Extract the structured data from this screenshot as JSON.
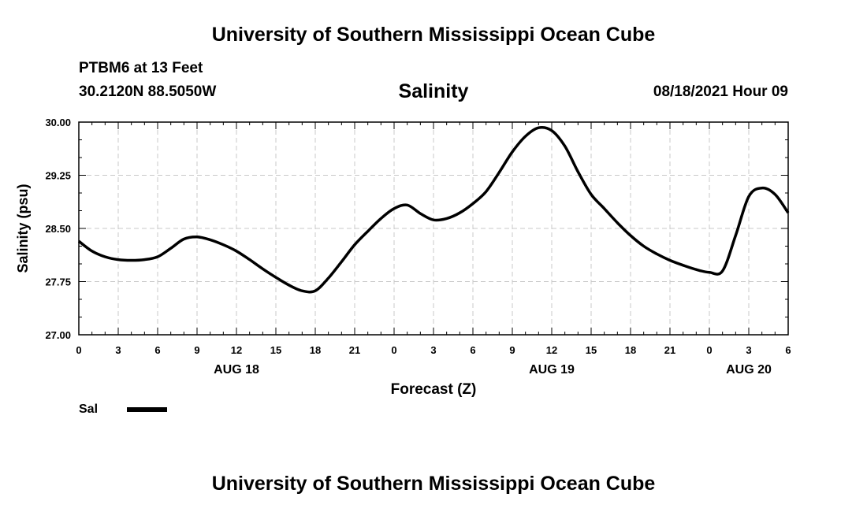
{
  "page_title": "University of Southern Mississippi Ocean Cube",
  "footer_title": "University of Southern Mississippi Ocean Cube",
  "station": "PTBM6 at 13 Feet",
  "coords": "30.2120N  88.5050W",
  "timestamp": "08/18/2021 Hour 09",
  "legend_label": "Sal",
  "chart_data": {
    "type": "line",
    "title": "Salinity",
    "xlabel": "Forecast (Z)",
    "ylabel": "Salinity (psu)",
    "ylim": [
      27.0,
      30.0
    ],
    "xlim": [
      0,
      54
    ],
    "grid": true,
    "legend": "bottom-left",
    "yticks": [
      "27.00",
      "27.75",
      "28.50",
      "29.25",
      "30.00"
    ],
    "xticks": [
      {
        "x": 0,
        "label": "0"
      },
      {
        "x": 3,
        "label": "3"
      },
      {
        "x": 6,
        "label": "6"
      },
      {
        "x": 9,
        "label": "9"
      },
      {
        "x": 12,
        "label": "12"
      },
      {
        "x": 15,
        "label": "15"
      },
      {
        "x": 18,
        "label": "18"
      },
      {
        "x": 21,
        "label": "21"
      },
      {
        "x": 24,
        "label": "0"
      },
      {
        "x": 27,
        "label": "3"
      },
      {
        "x": 30,
        "label": "6"
      },
      {
        "x": 33,
        "label": "9"
      },
      {
        "x": 36,
        "label": "12"
      },
      {
        "x": 39,
        "label": "15"
      },
      {
        "x": 42,
        "label": "18"
      },
      {
        "x": 45,
        "label": "21"
      },
      {
        "x": 48,
        "label": "0"
      },
      {
        "x": 51,
        "label": "3"
      },
      {
        "x": 54,
        "label": "6"
      }
    ],
    "date_labels": [
      {
        "x": 12,
        "label": "AUG 18"
      },
      {
        "x": 36,
        "label": "AUG 19"
      },
      {
        "x": 51,
        "label": "AUG 20"
      }
    ],
    "series": [
      {
        "name": "Sal",
        "color": "#000000",
        "x": [
          0,
          1,
          2,
          3,
          4,
          5,
          6,
          7,
          8,
          9,
          10,
          11,
          12,
          13,
          14,
          15,
          16,
          17,
          18,
          19,
          20,
          21,
          22,
          23,
          24,
          25,
          26,
          27,
          28,
          29,
          30,
          31,
          32,
          33,
          34,
          35,
          36,
          37,
          38,
          39,
          40,
          41,
          42,
          43,
          44,
          45,
          46,
          47,
          48,
          49,
          50,
          51,
          52,
          53,
          54
        ],
        "values": [
          28.32,
          28.18,
          28.1,
          28.06,
          28.05,
          28.06,
          28.1,
          28.22,
          28.35,
          28.38,
          28.34,
          28.27,
          28.18,
          28.06,
          27.93,
          27.81,
          27.7,
          27.62,
          27.62,
          27.8,
          28.03,
          28.27,
          28.46,
          28.64,
          28.78,
          28.83,
          28.71,
          28.62,
          28.64,
          28.72,
          28.85,
          29.02,
          29.29,
          29.58,
          29.8,
          29.92,
          29.88,
          29.66,
          29.3,
          28.98,
          28.78,
          28.58,
          28.4,
          28.25,
          28.14,
          28.05,
          27.98,
          27.92,
          27.88,
          27.9,
          28.4,
          28.95,
          29.07,
          28.98,
          28.72
        ]
      }
    ]
  }
}
